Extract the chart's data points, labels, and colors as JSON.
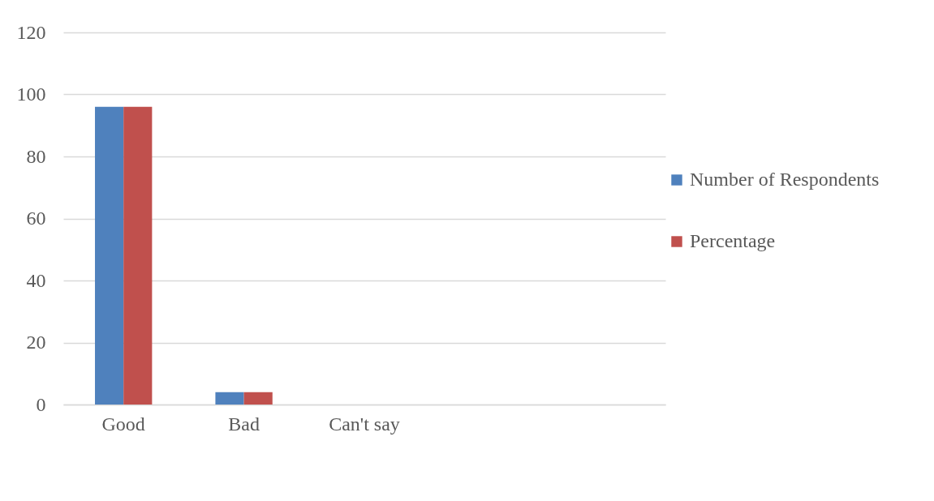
{
  "chart_data": {
    "type": "bar",
    "categories": [
      "Good",
      "Bad",
      "Can't say",
      null,
      null
    ],
    "series": [
      {
        "name": "Number of Respondents",
        "color": "#4f81bd",
        "values": [
          96,
          4,
          0,
          null,
          null
        ]
      },
      {
        "name": "Percentage",
        "color": "#c0504d",
        "values": [
          96,
          4,
          0,
          null,
          null
        ]
      }
    ],
    "ylim": [
      0,
      120
    ],
    "yticks": [
      0,
      20,
      40,
      60,
      80,
      100,
      120
    ],
    "grid": "y",
    "legend": "right"
  }
}
